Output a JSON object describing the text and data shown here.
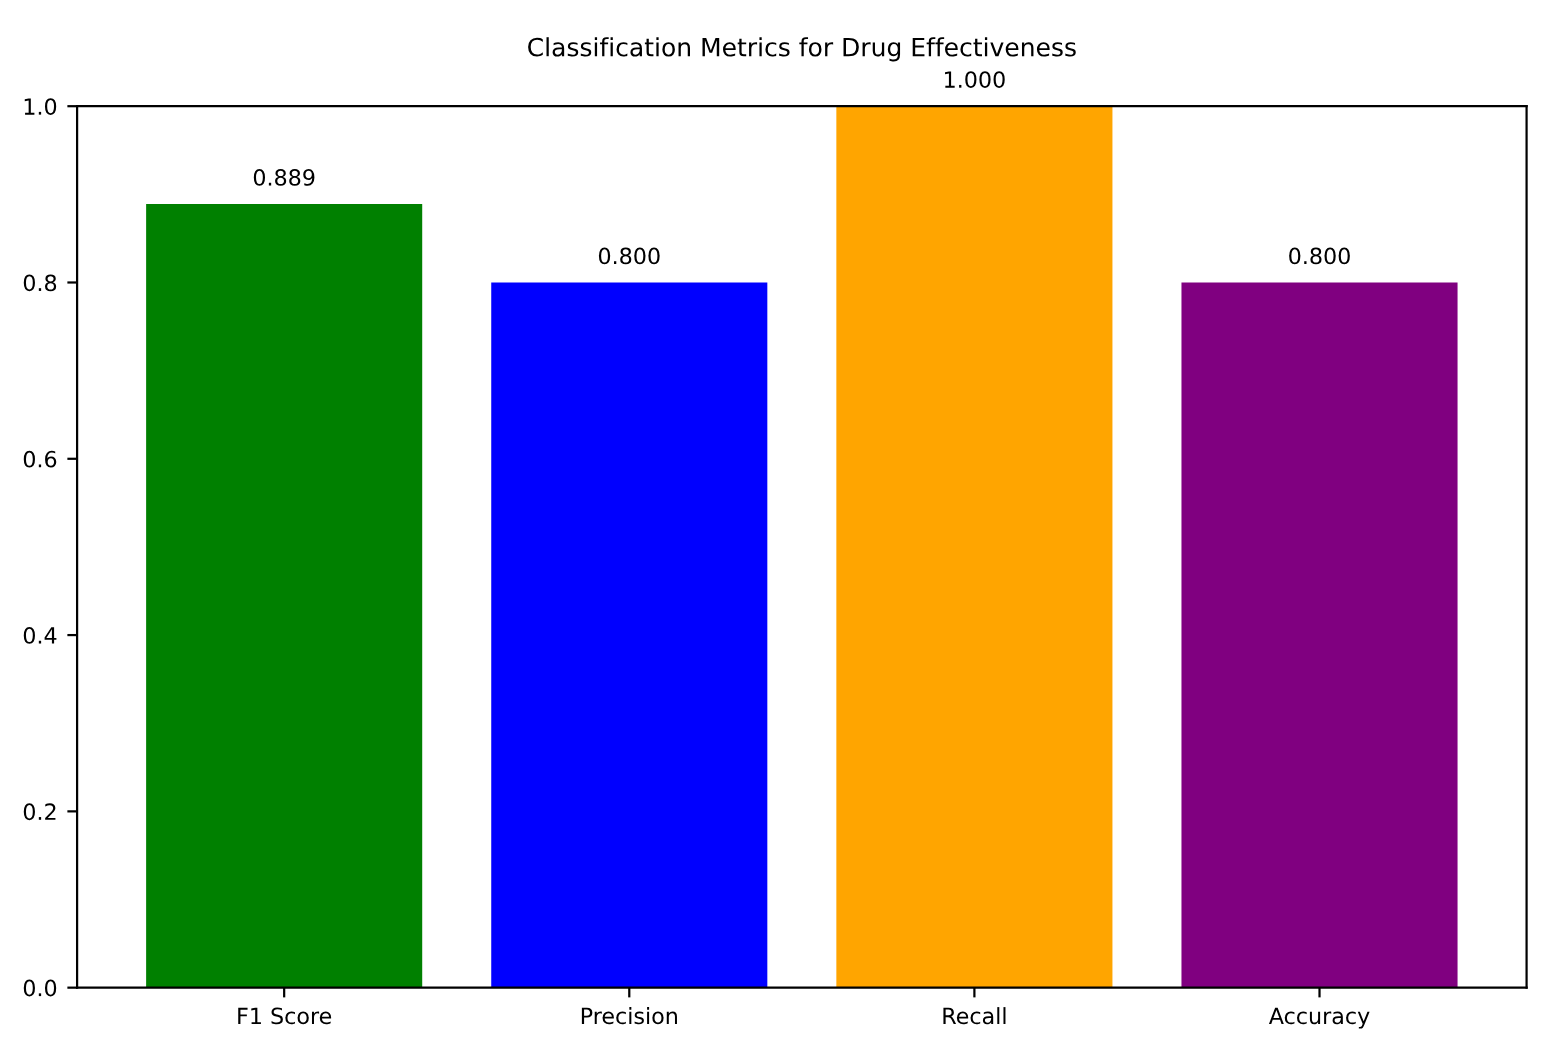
{
  "chart_data": {
    "type": "bar",
    "title": "Classification Metrics for Drug Effectiveness",
    "categories": [
      "F1 Score",
      "Precision",
      "Recall",
      "Accuracy"
    ],
    "values": [
      0.889,
      0.8,
      1.0,
      0.8
    ],
    "colors": [
      "#008000",
      "#0000ff",
      "#ffa500",
      "#800080"
    ],
    "value_labels": [
      "0.889",
      "0.800",
      "1.000",
      "0.800"
    ],
    "ylim": [
      0,
      1
    ],
    "yticks": [
      {
        "value": 0,
        "label": "0.0"
      },
      {
        "value": 0.2,
        "label": "0.2"
      },
      {
        "value": 0.4,
        "label": "0.4"
      },
      {
        "value": 0.6,
        "label": "0.6"
      },
      {
        "value": 0.8,
        "label": "0.8"
      },
      {
        "value": 1,
        "label": "1.0"
      }
    ]
  }
}
